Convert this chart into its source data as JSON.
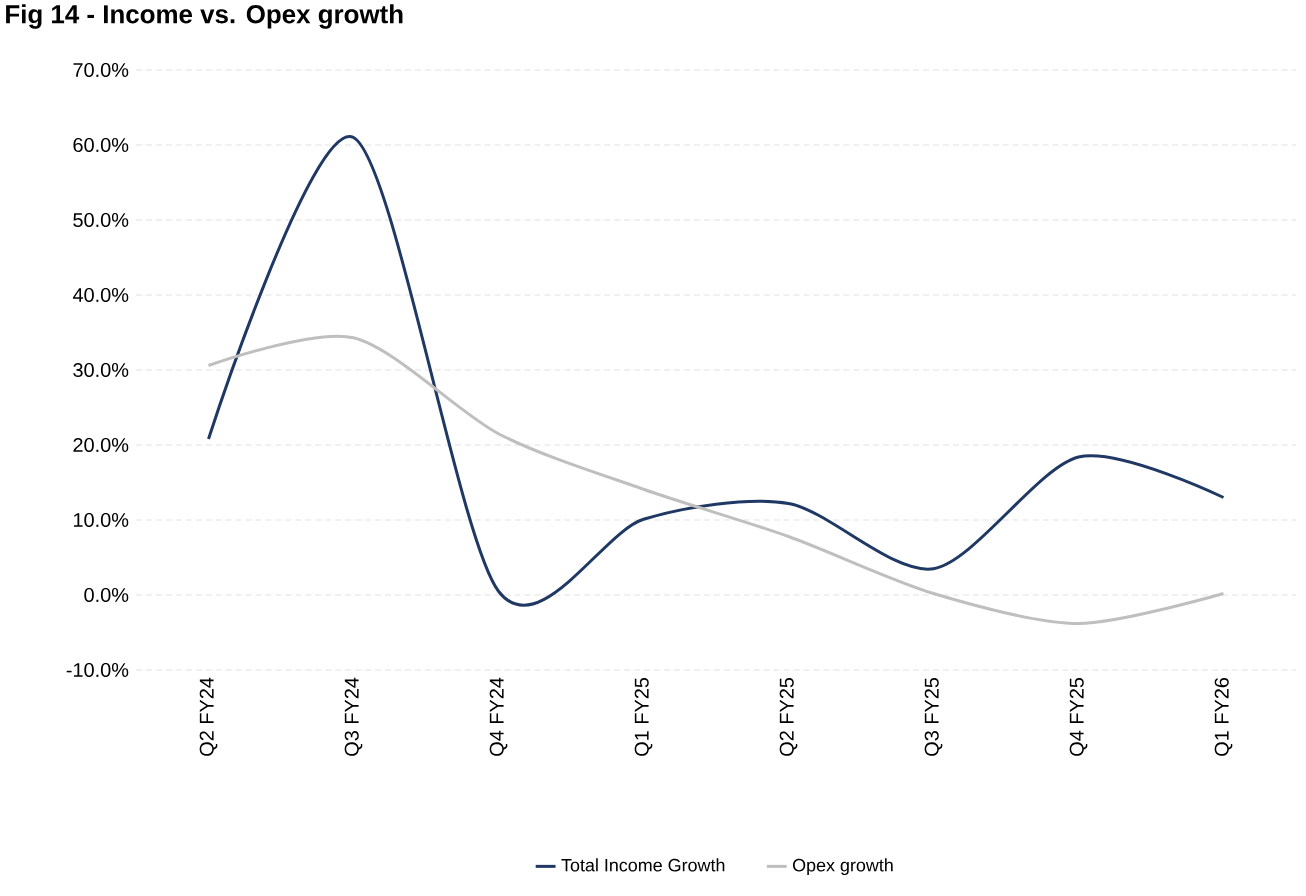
{
  "chart_data": {
    "type": "line",
    "title": "Fig 14 - Income vs. Opex growth",
    "categories": [
      "Q2 FY24",
      "Q3 FY24",
      "Q4 FY24",
      "Q1 FY25",
      "Q2 FY25",
      "Q3 FY25",
      "Q4 FY25",
      "Q1 FY26"
    ],
    "series": [
      {
        "name": "Total Income Growth",
        "color": "#1f3864",
        "values": [
          20.8,
          61.0,
          0.5,
          10.1,
          12.2,
          3.5,
          18.4,
          13.0
        ]
      },
      {
        "name": "Opex growth",
        "color": "#bfbfbf",
        "values": [
          30.6,
          34.3,
          21.5,
          14.1,
          7.8,
          0.2,
          -3.8,
          0.2
        ]
      }
    ],
    "ylim": [
      -10,
      70
    ],
    "yticks": [
      {
        "value": -10,
        "label": "-10.0%"
      },
      {
        "value": 0,
        "label": "0.0%"
      },
      {
        "value": 10,
        "label": "10.0%"
      },
      {
        "value": 20,
        "label": "20.0%"
      },
      {
        "value": 30,
        "label": "30.0%"
      },
      {
        "value": 40,
        "label": "40.0%"
      },
      {
        "value": 50,
        "label": "50.0%"
      },
      {
        "value": 60,
        "label": "60.0%"
      },
      {
        "value": 70,
        "label": "70.0%"
      }
    ],
    "grid": "y",
    "legend": "bottom",
    "marker": "none",
    "line_style": "solid"
  }
}
